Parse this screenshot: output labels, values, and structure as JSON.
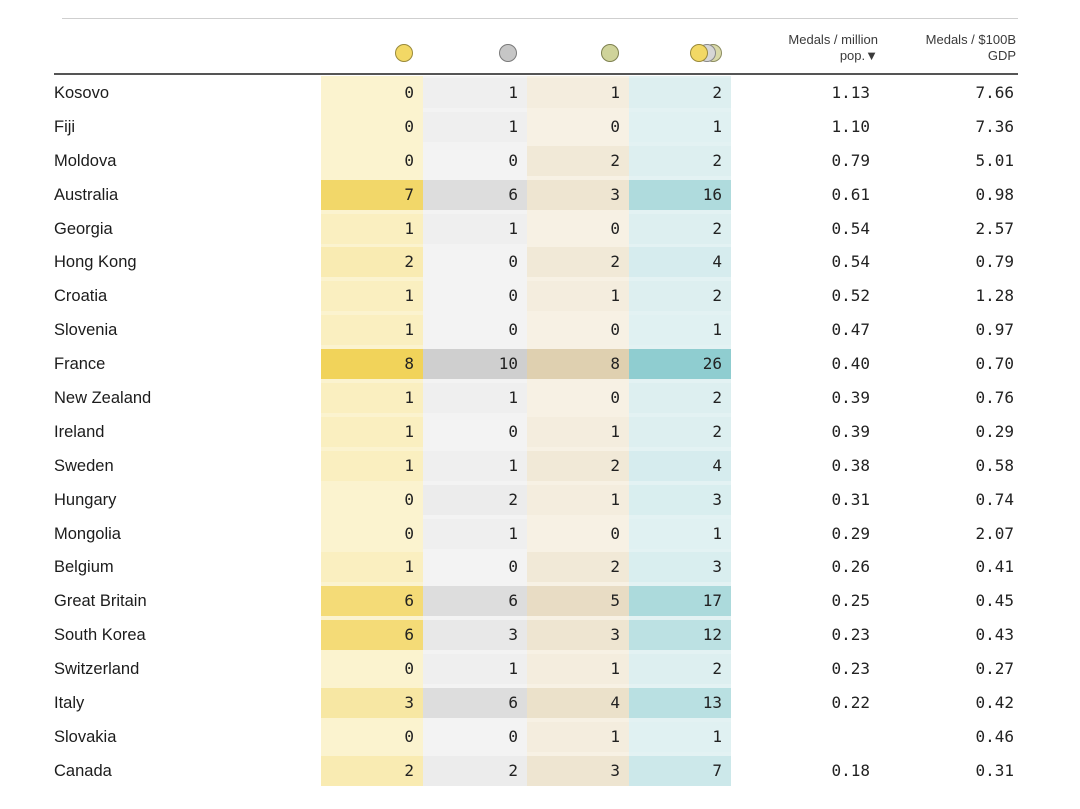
{
  "header": {
    "gold_icon": "gold-medal-icon",
    "silver_icon": "silver-medal-icon",
    "bronze_icon": "bronze-medal-icon",
    "total_icon": "total-medals-icon",
    "per_million_line1": "Medals / million",
    "per_million_line2": "pop.▼",
    "per_gdp_line1": "Medals / $100B",
    "per_gdp_line2": "GDP"
  },
  "colors": {
    "gold_light": "#fbf3cf",
    "gold_dark": "#f1d35a",
    "silver_light": "#f3f3f3",
    "silver_dark": "#cfcfcf",
    "bronze_light": "#f7f1e4",
    "bronze_dark": "#dfd0b0",
    "total_light": "#e3f2f3",
    "total_dark": "#8fcdd0"
  },
  "rows": [
    {
      "country": "Kosovo",
      "gold": "0",
      "silver": "1",
      "bronze": "1",
      "total": "2",
      "per_million": "1.13",
      "per_gdp": "7.66"
    },
    {
      "country": "Fiji",
      "gold": "0",
      "silver": "1",
      "bronze": "0",
      "total": "1",
      "per_million": "1.10",
      "per_gdp": "7.36"
    },
    {
      "country": "Moldova",
      "gold": "0",
      "silver": "0",
      "bronze": "2",
      "total": "2",
      "per_million": "0.79",
      "per_gdp": "5.01"
    },
    {
      "country": "Australia",
      "gold": "7",
      "silver": "6",
      "bronze": "3",
      "total": "16",
      "per_million": "0.61",
      "per_gdp": "0.98"
    },
    {
      "country": "Georgia",
      "gold": "1",
      "silver": "1",
      "bronze": "0",
      "total": "2",
      "per_million": "0.54",
      "per_gdp": "2.57"
    },
    {
      "country": "Hong Kong",
      "gold": "2",
      "silver": "0",
      "bronze": "2",
      "total": "4",
      "per_million": "0.54",
      "per_gdp": "0.79"
    },
    {
      "country": "Croatia",
      "gold": "1",
      "silver": "0",
      "bronze": "1",
      "total": "2",
      "per_million": "0.52",
      "per_gdp": "1.28"
    },
    {
      "country": "Slovenia",
      "gold": "1",
      "silver": "0",
      "bronze": "0",
      "total": "1",
      "per_million": "0.47",
      "per_gdp": "0.97"
    },
    {
      "country": "France",
      "gold": "8",
      "silver": "10",
      "bronze": "8",
      "total": "26",
      "per_million": "0.40",
      "per_gdp": "0.70"
    },
    {
      "country": "New Zealand",
      "gold": "1",
      "silver": "1",
      "bronze": "0",
      "total": "2",
      "per_million": "0.39",
      "per_gdp": "0.76"
    },
    {
      "country": "Ireland",
      "gold": "1",
      "silver": "0",
      "bronze": "1",
      "total": "2",
      "per_million": "0.39",
      "per_gdp": "0.29"
    },
    {
      "country": "Sweden",
      "gold": "1",
      "silver": "1",
      "bronze": "2",
      "total": "4",
      "per_million": "0.38",
      "per_gdp": "0.58"
    },
    {
      "country": "Hungary",
      "gold": "0",
      "silver": "2",
      "bronze": "1",
      "total": "3",
      "per_million": "0.31",
      "per_gdp": "0.74"
    },
    {
      "country": "Mongolia",
      "gold": "0",
      "silver": "1",
      "bronze": "0",
      "total": "1",
      "per_million": "0.29",
      "per_gdp": "2.07"
    },
    {
      "country": "Belgium",
      "gold": "1",
      "silver": "0",
      "bronze": "2",
      "total": "3",
      "per_million": "0.26",
      "per_gdp": "0.41"
    },
    {
      "country": "Great Britain",
      "gold": "6",
      "silver": "6",
      "bronze": "5",
      "total": "17",
      "per_million": "0.25",
      "per_gdp": "0.45"
    },
    {
      "country": "South Korea",
      "gold": "6",
      "silver": "3",
      "bronze": "3",
      "total": "12",
      "per_million": "0.23",
      "per_gdp": "0.43"
    },
    {
      "country": "Switzerland",
      "gold": "0",
      "silver": "1",
      "bronze": "1",
      "total": "2",
      "per_million": "0.23",
      "per_gdp": "0.27"
    },
    {
      "country": "Italy",
      "gold": "3",
      "silver": "6",
      "bronze": "4",
      "total": "13",
      "per_million": "0.22",
      "per_gdp": "0.42"
    },
    {
      "country": "Slovakia",
      "gold": "0",
      "silver": "0",
      "bronze": "1",
      "total": "1",
      "per_million": "",
      "per_gdp": "0.46"
    },
    {
      "country": "Canada",
      "gold": "2",
      "silver": "2",
      "bronze": "3",
      "total": "7",
      "per_million": "0.18",
      "per_gdp": "0.31"
    }
  ]
}
